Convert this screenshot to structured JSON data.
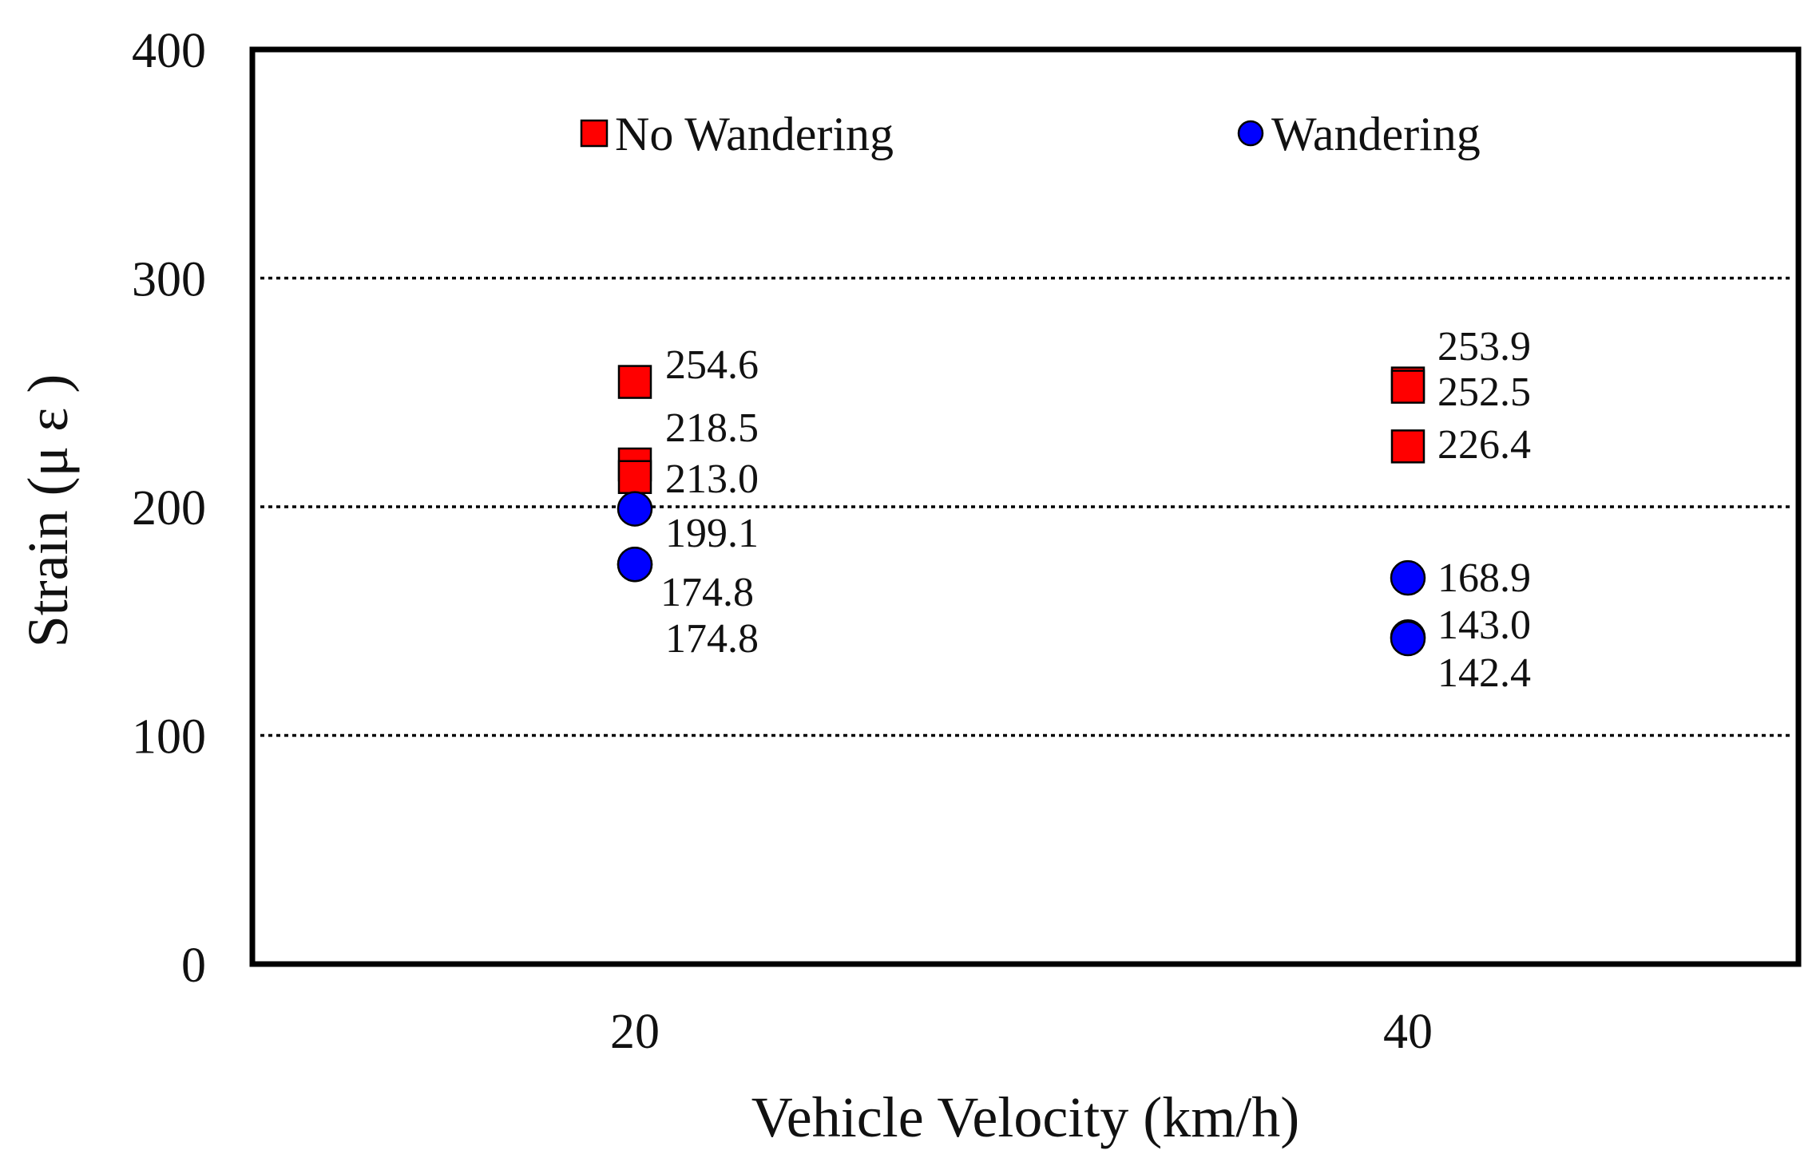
{
  "chart_data": {
    "type": "scatter",
    "title": "",
    "xlabel": "Vehicle Velocity (km/h)",
    "ylabel": "Strain (μ ε )",
    "ylim": [
      0,
      400
    ],
    "yticks": [
      "0",
      "100",
      "200",
      "300",
      "400"
    ],
    "categories": [
      "20",
      "40"
    ],
    "gridlines": [
      100,
      200,
      300
    ],
    "legend": {
      "placement": "top-inside"
    },
    "series": [
      {
        "name": "No Wandering",
        "marker": "square",
        "color": "#ff0000",
        "points": [
          {
            "category": "20",
            "values": [
              254.6,
              218.5,
              213.0
            ],
            "labels": [
              "254.6",
              "218.5",
              "213.0"
            ]
          },
          {
            "category": "40",
            "values": [
              253.9,
              252.5,
              226.4
            ],
            "labels": [
              "253.9",
              "252.5",
              "226.4"
            ]
          }
        ]
      },
      {
        "name": "Wandering",
        "marker": "circle",
        "color": "#0000ff",
        "points": [
          {
            "category": "20",
            "values": [
              199.1,
              174.8,
              174.8
            ],
            "labels": [
              "199.1",
              "174.8",
              "174.8"
            ]
          },
          {
            "category": "40",
            "values": [
              168.9,
              143.0,
              142.4
            ],
            "labels": [
              "168.9",
              "143.0",
              "142.4"
            ]
          }
        ]
      }
    ]
  }
}
